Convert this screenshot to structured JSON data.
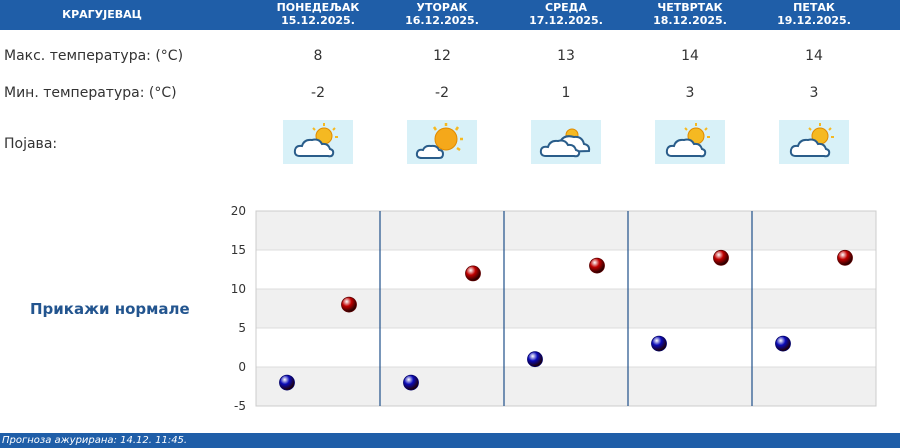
{
  "header": {
    "city": "КРАГУЈЕВАЦ",
    "days": [
      {
        "name": "ПОНЕДЕЉАК",
        "date": "15.12.2025."
      },
      {
        "name": "УТОРАК",
        "date": "16.12.2025."
      },
      {
        "name": "СРЕДА",
        "date": "17.12.2025."
      },
      {
        "name": "ЧЕТВРТАК",
        "date": "18.12.2025."
      },
      {
        "name": "ПЕТАК",
        "date": "19.12.2025."
      }
    ]
  },
  "rows": {
    "max_label": "Макс. температура: (°C)",
    "min_label": "Мин. температура: (°C)",
    "phenomenon_label": "Појава:",
    "max_values": [
      "8",
      "12",
      "13",
      "14",
      "14"
    ],
    "min_values": [
      "-2",
      "-2",
      "1",
      "3",
      "3"
    ],
    "icons": [
      "partly-cloudy-icon",
      "sunny-intervals-icon",
      "cloudy-icon",
      "partly-cloudy-icon",
      "partly-cloudy-icon"
    ]
  },
  "normals_link": "Прикажи нормале",
  "footer": "Прогноза ажурирана:  14.12. 11:45.",
  "chart_data": {
    "type": "scatter",
    "categories": [
      "15.12.2025.",
      "16.12.2025.",
      "17.12.2025.",
      "18.12.2025.",
      "19.12.2025."
    ],
    "ylim": [
      -5,
      20
    ],
    "yticks": [
      "20",
      "15",
      "10",
      "5",
      "0",
      "-5"
    ],
    "series": [
      {
        "values": [
          -2,
          -2,
          1,
          3,
          3
        ],
        "color": "#0a0ab8"
      },
      {
        "values": [
          8,
          12,
          13,
          14,
          14
        ],
        "color": "#c00000"
      }
    ],
    "grid": true,
    "colors": {
      "band": "#f0f0f0",
      "divider": "#1f4f8a"
    }
  }
}
